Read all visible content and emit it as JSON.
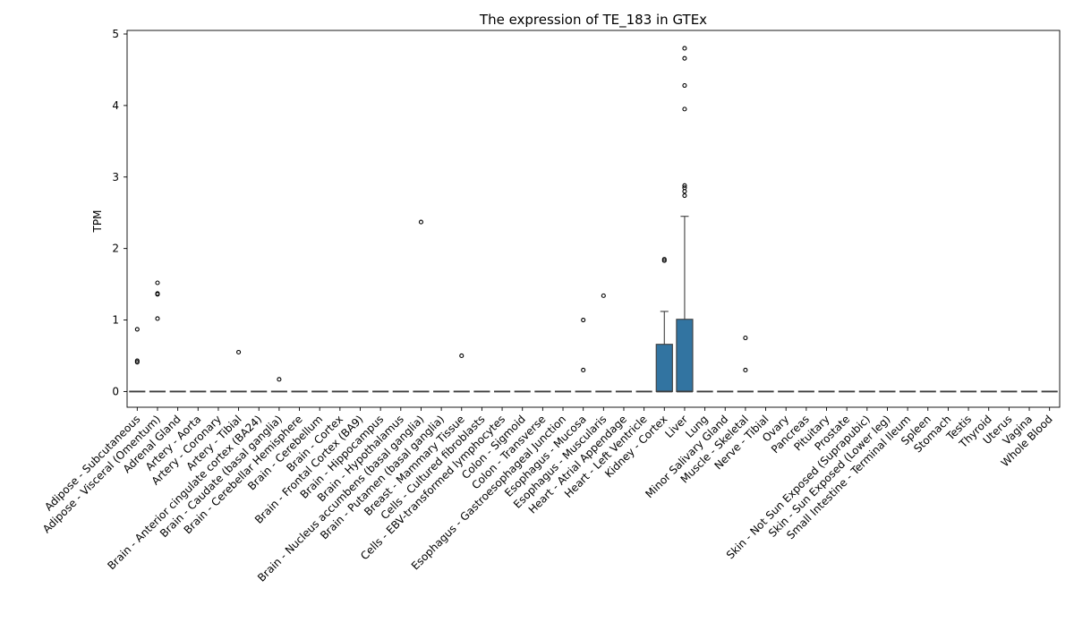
{
  "chart_data": {
    "type": "box",
    "title": "The expression of TE_183 in GTEx",
    "xlabel": "",
    "ylabel": "TPM",
    "ylim": [
      -0.22,
      5.05
    ],
    "yticks": [
      0,
      1,
      2,
      3,
      4,
      5
    ],
    "grid": false,
    "box_color": "#3274a1",
    "categories": [
      "Adipose - Subcutaneous",
      "Adipose - Visceral (Omentum)",
      "Adrenal Gland",
      "Artery - Aorta",
      "Artery - Coronary",
      "Artery - Tibial",
      "Brain - Anterior cingulate cortex (BA24)",
      "Brain - Caudate (basal ganglia)",
      "Brain - Cerebellar Hemisphere",
      "Brain - Cerebellum",
      "Brain - Cortex",
      "Brain - Frontal Cortex (BA9)",
      "Brain - Hippocampus",
      "Brain - Hypothalamus",
      "Brain - Nucleus accumbens (basal ganglia)",
      "Brain - Putamen (basal ganglia)",
      "Breast - Mammary Tissue",
      "Cells - Cultured fibroblasts",
      "Cells - EBV-transformed lymphocytes",
      "Colon - Sigmoid",
      "Colon - Transverse",
      "Esophagus - Gastroesophageal Junction",
      "Esophagus - Mucosa",
      "Esophagus - Muscularis",
      "Heart - Atrial Appendage",
      "Heart - Left Ventricle",
      "Kidney - Cortex",
      "Liver",
      "Lung",
      "Minor Salivary Gland",
      "Muscle - Skeletal",
      "Nerve - Tibial",
      "Ovary",
      "Pancreas",
      "Pituitary",
      "Prostate",
      "Skin - Not Sun Exposed (Suprapubic)",
      "Skin - Sun Exposed (Lower leg)",
      "Small Intestine - Terminal Ileum",
      "Spleen",
      "Stomach",
      "Testis",
      "Thyroid",
      "Uterus",
      "Vagina",
      "Whole Blood"
    ],
    "boxes": [
      {
        "q1": 0,
        "median": 0,
        "q3": 0,
        "whislo": 0,
        "whishi": 0,
        "fliers": [
          0.87,
          0.43,
          0.41
        ]
      },
      {
        "q1": 0,
        "median": 0,
        "q3": 0,
        "whislo": 0,
        "whishi": 0,
        "fliers": [
          1.52,
          1.37,
          1.36,
          1.02
        ]
      },
      {
        "q1": 0,
        "median": 0,
        "q3": 0,
        "whislo": 0,
        "whishi": 0,
        "fliers": []
      },
      {
        "q1": 0,
        "median": 0,
        "q3": 0,
        "whislo": 0,
        "whishi": 0,
        "fliers": []
      },
      {
        "q1": 0,
        "median": 0,
        "q3": 0,
        "whislo": 0,
        "whishi": 0,
        "fliers": []
      },
      {
        "q1": 0,
        "median": 0,
        "q3": 0,
        "whislo": 0,
        "whishi": 0,
        "fliers": [
          0.55
        ]
      },
      {
        "q1": 0,
        "median": 0,
        "q3": 0,
        "whislo": 0,
        "whishi": 0,
        "fliers": []
      },
      {
        "q1": 0,
        "median": 0,
        "q3": 0,
        "whislo": 0,
        "whishi": 0,
        "fliers": [
          0.17
        ]
      },
      {
        "q1": 0,
        "median": 0,
        "q3": 0,
        "whislo": 0,
        "whishi": 0,
        "fliers": []
      },
      {
        "q1": 0,
        "median": 0,
        "q3": 0,
        "whislo": 0,
        "whishi": 0,
        "fliers": []
      },
      {
        "q1": 0,
        "median": 0,
        "q3": 0,
        "whislo": 0,
        "whishi": 0,
        "fliers": []
      },
      {
        "q1": 0,
        "median": 0,
        "q3": 0,
        "whislo": 0,
        "whishi": 0,
        "fliers": []
      },
      {
        "q1": 0,
        "median": 0,
        "q3": 0,
        "whislo": 0,
        "whishi": 0,
        "fliers": []
      },
      {
        "q1": 0,
        "median": 0,
        "q3": 0,
        "whislo": 0,
        "whishi": 0,
        "fliers": []
      },
      {
        "q1": 0,
        "median": 0,
        "q3": 0,
        "whislo": 0,
        "whishi": 0,
        "fliers": [
          2.37
        ]
      },
      {
        "q1": 0,
        "median": 0,
        "q3": 0,
        "whislo": 0,
        "whishi": 0,
        "fliers": []
      },
      {
        "q1": 0,
        "median": 0,
        "q3": 0,
        "whislo": 0,
        "whishi": 0,
        "fliers": [
          0.5
        ]
      },
      {
        "q1": 0,
        "median": 0,
        "q3": 0,
        "whislo": 0,
        "whishi": 0,
        "fliers": []
      },
      {
        "q1": 0,
        "median": 0,
        "q3": 0,
        "whislo": 0,
        "whishi": 0,
        "fliers": []
      },
      {
        "q1": 0,
        "median": 0,
        "q3": 0,
        "whislo": 0,
        "whishi": 0,
        "fliers": []
      },
      {
        "q1": 0,
        "median": 0,
        "q3": 0,
        "whislo": 0,
        "whishi": 0,
        "fliers": []
      },
      {
        "q1": 0,
        "median": 0,
        "q3": 0,
        "whislo": 0,
        "whishi": 0,
        "fliers": []
      },
      {
        "q1": 0,
        "median": 0,
        "q3": 0,
        "whislo": 0,
        "whishi": 0,
        "fliers": [
          1.0,
          0.3
        ]
      },
      {
        "q1": 0,
        "median": 0,
        "q3": 0,
        "whislo": 0,
        "whishi": 0,
        "fliers": [
          1.34
        ]
      },
      {
        "q1": 0,
        "median": 0,
        "q3": 0,
        "whislo": 0,
        "whishi": 0,
        "fliers": []
      },
      {
        "q1": 0,
        "median": 0,
        "q3": 0,
        "whislo": 0,
        "whishi": 0,
        "fliers": []
      },
      {
        "q1": 0,
        "median": 0,
        "q3": 0.66,
        "whislo": 0,
        "whishi": 1.12,
        "fliers": [
          1.85,
          1.83
        ]
      },
      {
        "q1": 0,
        "median": 0,
        "q3": 1.01,
        "whislo": 0,
        "whishi": 2.45,
        "fliers": [
          4.8,
          4.66,
          4.28,
          3.95,
          2.88,
          2.85,
          2.8,
          2.74
        ]
      },
      {
        "q1": 0,
        "median": 0,
        "q3": 0,
        "whislo": 0,
        "whishi": 0,
        "fliers": []
      },
      {
        "q1": 0,
        "median": 0,
        "q3": 0,
        "whislo": 0,
        "whishi": 0,
        "fliers": []
      },
      {
        "q1": 0,
        "median": 0,
        "q3": 0,
        "whislo": 0,
        "whishi": 0,
        "fliers": [
          0.75,
          0.3
        ]
      },
      {
        "q1": 0,
        "median": 0,
        "q3": 0,
        "whislo": 0,
        "whishi": 0,
        "fliers": []
      },
      {
        "q1": 0,
        "median": 0,
        "q3": 0,
        "whislo": 0,
        "whishi": 0,
        "fliers": []
      },
      {
        "q1": 0,
        "median": 0,
        "q3": 0,
        "whislo": 0,
        "whishi": 0,
        "fliers": []
      },
      {
        "q1": 0,
        "median": 0,
        "q3": 0,
        "whislo": 0,
        "whishi": 0,
        "fliers": []
      },
      {
        "q1": 0,
        "median": 0,
        "q3": 0,
        "whislo": 0,
        "whishi": 0,
        "fliers": []
      },
      {
        "q1": 0,
        "median": 0,
        "q3": 0,
        "whislo": 0,
        "whishi": 0,
        "fliers": []
      },
      {
        "q1": 0,
        "median": 0,
        "q3": 0,
        "whislo": 0,
        "whishi": 0,
        "fliers": []
      },
      {
        "q1": 0,
        "median": 0,
        "q3": 0,
        "whislo": 0,
        "whishi": 0,
        "fliers": []
      },
      {
        "q1": 0,
        "median": 0,
        "q3": 0,
        "whislo": 0,
        "whishi": 0,
        "fliers": []
      },
      {
        "q1": 0,
        "median": 0,
        "q3": 0,
        "whislo": 0,
        "whishi": 0,
        "fliers": []
      },
      {
        "q1": 0,
        "median": 0,
        "q3": 0,
        "whislo": 0,
        "whishi": 0,
        "fliers": []
      },
      {
        "q1": 0,
        "median": 0,
        "q3": 0,
        "whislo": 0,
        "whishi": 0,
        "fliers": []
      },
      {
        "q1": 0,
        "median": 0,
        "q3": 0,
        "whislo": 0,
        "whishi": 0,
        "fliers": []
      },
      {
        "q1": 0,
        "median": 0,
        "q3": 0,
        "whislo": 0,
        "whishi": 0,
        "fliers": []
      },
      {
        "q1": 0,
        "median": 0,
        "q3": 0,
        "whislo": 0,
        "whishi": 0,
        "fliers": []
      }
    ]
  }
}
